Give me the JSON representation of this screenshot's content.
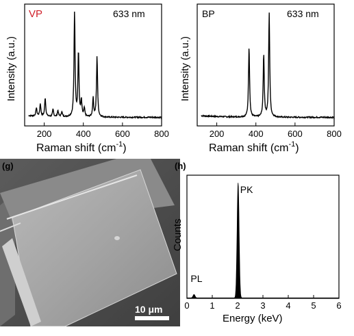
{
  "colors": {
    "vp_label": "#d0202a",
    "text": "#000000",
    "sem_bg": "#7d7d7d",
    "scale_bar": "#ffffff"
  },
  "chart_data": [
    {
      "panel": "vp-raman",
      "type": "line",
      "label": "VP",
      "annotation": "633 nm",
      "xlabel": "Raman shift (cm",
      "xlabel_sup": "-1",
      "xlabel_end": ")",
      "ylabel": "Intensity (a.u.)",
      "xlim": [
        100,
        800
      ],
      "xticks": [
        200,
        400,
        600,
        800
      ],
      "yticks_shown": false,
      "peaks": [
        {
          "x": 160,
          "height": 0.08
        },
        {
          "x": 180,
          "height": 0.12
        },
        {
          "x": 205,
          "height": 0.18
        },
        {
          "x": 245,
          "height": 0.07
        },
        {
          "x": 270,
          "height": 0.06
        },
        {
          "x": 290,
          "height": 0.05
        },
        {
          "x": 355,
          "height": 1.0
        },
        {
          "x": 375,
          "height": 0.62
        },
        {
          "x": 390,
          "height": 0.15
        },
        {
          "x": 405,
          "height": 0.08
        },
        {
          "x": 450,
          "height": 0.18
        },
        {
          "x": 470,
          "height": 0.58
        }
      ],
      "baseline": 0.03
    },
    {
      "panel": "bp-raman",
      "type": "line",
      "label": "BP",
      "annotation": "633 nm",
      "xlabel": "Raman shift (cm",
      "xlabel_sup": "-1",
      "xlabel_end": ")",
      "ylabel": "Intensity (a.u.)",
      "xlim": [
        100,
        800
      ],
      "xticks": [
        200,
        400,
        600,
        800
      ],
      "yticks_shown": false,
      "peaks": [
        {
          "x": 365,
          "height": 0.68
        },
        {
          "x": 440,
          "height": 0.6
        },
        {
          "x": 468,
          "height": 1.0
        }
      ],
      "baseline": 0.03
    },
    {
      "panel": "edx",
      "type": "area",
      "panel_label": "(h)",
      "xlabel": "Energy (keV)",
      "ylabel": "Counts",
      "xlim": [
        0,
        6
      ],
      "xticks": [
        0,
        1,
        2,
        3,
        4,
        5,
        6
      ],
      "yticks_shown": false,
      "peaks": [
        {
          "x": 0.28,
          "height": 0.03,
          "label": "PL"
        },
        {
          "x": 2.02,
          "height": 1.0,
          "label": "PK"
        }
      ]
    }
  ],
  "sem": {
    "panel_label": "(g)",
    "scale_text": "10 μm"
  }
}
